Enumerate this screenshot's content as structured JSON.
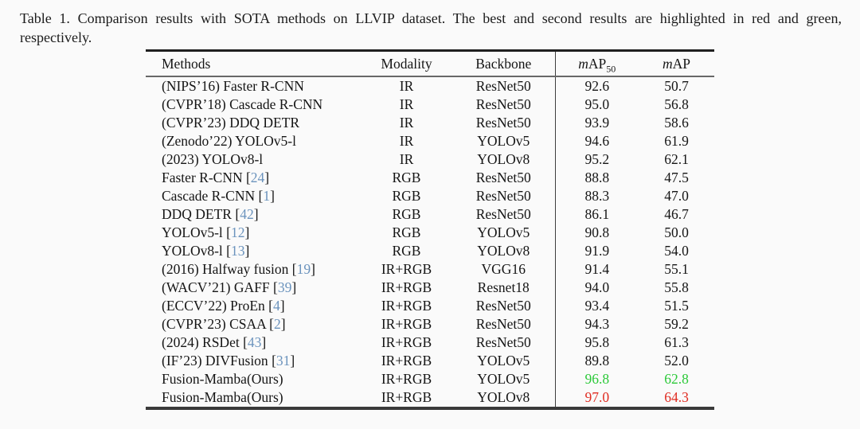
{
  "caption": {
    "line1": "Table 1.  Comparison results with SOTA methods on LLVIP dataset.  The best and second results are highlighted in red and green,",
    "line2": "respectively."
  },
  "colors": {
    "citation": "#6b93bd",
    "best": "#e02b20",
    "second": "#2bc938",
    "normal": "#151515"
  },
  "table": {
    "headers": {
      "methods": "Methods",
      "modality": "Modality",
      "backbone": "Backbone",
      "map_italic": "m",
      "map_caps": "AP",
      "map50_sub": "50"
    },
    "rows": [
      {
        "method": "(NIPS’16) Faster R-CNN",
        "cite": null,
        "modality": "IR",
        "backbone": "ResNet50",
        "map50": "92.6",
        "map": "50.7",
        "bold": false,
        "highlight": null
      },
      {
        "method": "(CVPR’18) Cascade R-CNN",
        "cite": null,
        "modality": "IR",
        "backbone": "ResNet50",
        "map50": "95.0",
        "map": "56.8",
        "bold": false,
        "highlight": null
      },
      {
        "method": "(CVPR’23) DDQ DETR",
        "cite": null,
        "modality": "IR",
        "backbone": "ResNet50",
        "map50": "93.9",
        "map": "58.6",
        "bold": false,
        "highlight": null
      },
      {
        "method": "(Zenodo’22) YOLOv5-l",
        "cite": null,
        "modality": "IR",
        "backbone": "YOLOv5",
        "map50": "94.6",
        "map": "61.9",
        "bold": false,
        "highlight": null
      },
      {
        "method": "(2023) YOLOv8-l",
        "cite": null,
        "modality": "IR",
        "backbone": "YOLOv8",
        "map50": "95.2",
        "map": "62.1",
        "bold": false,
        "highlight": null
      },
      {
        "method": "Faster R-CNN",
        "cite": "24",
        "modality": "RGB",
        "backbone": "ResNet50",
        "map50": "88.8",
        "map": "47.5",
        "bold": false,
        "highlight": null
      },
      {
        "method": "Cascade R-CNN",
        "cite": "1",
        "modality": "RGB",
        "backbone": "ResNet50",
        "map50": "88.3",
        "map": "47.0",
        "bold": false,
        "highlight": null
      },
      {
        "method": "DDQ DETR",
        "cite": "42",
        "modality": "RGB",
        "backbone": "ResNet50",
        "map50": "86.1",
        "map": "46.7",
        "bold": false,
        "highlight": null
      },
      {
        "method": "YOLOv5-l",
        "cite": "12",
        "modality": "RGB",
        "backbone": "YOLOv5",
        "map50": "90.8",
        "map": "50.0",
        "bold": false,
        "highlight": null
      },
      {
        "method": "YOLOv8-l",
        "cite": "13",
        "modality": "RGB",
        "backbone": "YOLOv8",
        "map50": "91.9",
        "map": "54.0",
        "bold": false,
        "highlight": null
      },
      {
        "method": "(2016) Halfway fusion",
        "cite": "19",
        "modality": "IR+RGB",
        "backbone": "VGG16",
        "map50": "91.4",
        "map": "55.1",
        "bold": false,
        "highlight": null
      },
      {
        "method": "(WACV’21) GAFF",
        "cite": "39",
        "modality": "IR+RGB",
        "backbone": "Resnet18",
        "map50": "94.0",
        "map": "55.8",
        "bold": false,
        "highlight": null
      },
      {
        "method": "(ECCV’22) ProEn",
        "cite": "4",
        "modality": "IR+RGB",
        "backbone": "ResNet50",
        "map50": "93.4",
        "map": "51.5",
        "bold": false,
        "highlight": null
      },
      {
        "method": "(CVPR’23) CSAA",
        "cite": "2",
        "modality": "IR+RGB",
        "backbone": "ResNet50",
        "map50": "94.3",
        "map": "59.2",
        "bold": false,
        "highlight": null
      },
      {
        "method": "(2024) RSDet",
        "cite": "43",
        "modality": "IR+RGB",
        "backbone": "ResNet50",
        "map50": "95.8",
        "map": "61.3",
        "bold": false,
        "highlight": null
      },
      {
        "method": "(IF’23) DIVFusion",
        "cite": "31",
        "modality": "IR+RGB",
        "backbone": "YOLOv5",
        "map50": "89.8",
        "map": "52.0",
        "bold": false,
        "highlight": null
      },
      {
        "method": "Fusion-Mamba(Ours)",
        "cite": null,
        "modality": "IR+RGB",
        "backbone": "YOLOv5",
        "map50": "96.8",
        "map": "62.8",
        "bold": true,
        "highlight": "second"
      },
      {
        "method": "Fusion-Mamba(Ours)",
        "cite": null,
        "modality": "IR+RGB",
        "backbone": "YOLOv8",
        "map50": "97.0",
        "map": "64.3",
        "bold": true,
        "highlight": "best"
      }
    ]
  }
}
